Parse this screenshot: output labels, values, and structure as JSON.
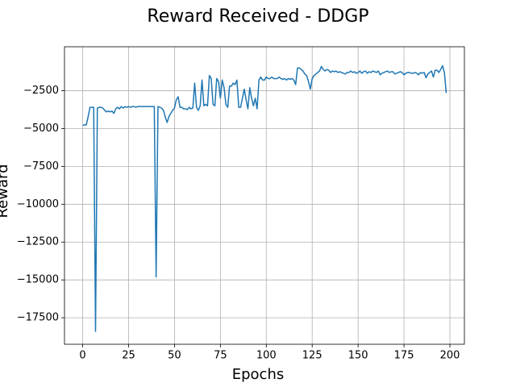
{
  "chart_data": {
    "type": "line",
    "title": "Reward Received - DDGP",
    "x_label": "Epochs",
    "y_label": "Reward",
    "color": "#1f77b4",
    "grid": true,
    "xlim": [
      -9.9,
      207.9
    ],
    "ylim": [
      -19250,
      400
    ],
    "xticks": [
      0,
      25,
      50,
      75,
      100,
      125,
      150,
      175,
      200
    ],
    "yticks": [
      {
        "value": -17500,
        "label": "−17500"
      },
      {
        "value": -15000,
        "label": "−15000"
      },
      {
        "value": -12500,
        "label": "−12500"
      },
      {
        "value": -10000,
        "label": "−10000"
      },
      {
        "value": -7500,
        "label": "−7500"
      },
      {
        "value": -5000,
        "label": "−5000"
      },
      {
        "value": -2500,
        "label": "−2500"
      }
    ],
    "x": [
      0,
      1,
      2,
      3,
      4,
      5,
      6,
      7,
      8,
      9,
      10,
      11,
      12,
      13,
      14,
      15,
      16,
      17,
      18,
      19,
      20,
      21,
      22,
      23,
      24,
      25,
      26,
      27,
      28,
      29,
      30,
      31,
      32,
      33,
      34,
      35,
      36,
      37,
      38,
      39,
      40,
      41,
      42,
      43,
      44,
      45,
      46,
      47,
      48,
      49,
      50,
      51,
      52,
      53,
      54,
      55,
      56,
      57,
      58,
      59,
      60,
      61,
      62,
      63,
      64,
      65,
      66,
      67,
      68,
      69,
      70,
      71,
      72,
      73,
      74,
      75,
      76,
      77,
      78,
      79,
      80,
      81,
      82,
      83,
      84,
      85,
      86,
      87,
      88,
      89,
      90,
      91,
      92,
      93,
      94,
      95,
      96,
      97,
      98,
      99,
      100,
      101,
      102,
      103,
      104,
      105,
      106,
      107,
      108,
      109,
      110,
      111,
      112,
      113,
      114,
      115,
      116,
      117,
      118,
      119,
      120,
      121,
      122,
      123,
      124,
      125,
      126,
      127,
      128,
      129,
      130,
      131,
      132,
      133,
      134,
      135,
      136,
      137,
      138,
      139,
      140,
      141,
      142,
      143,
      144,
      145,
      146,
      147,
      148,
      149,
      150,
      151,
      152,
      153,
      154,
      155,
      156,
      157,
      158,
      159,
      160,
      161,
      162,
      163,
      164,
      165,
      166,
      167,
      168,
      169,
      170,
      171,
      172,
      173,
      174,
      175,
      176,
      177,
      178,
      179,
      180,
      181,
      182,
      183,
      184,
      185,
      186,
      187,
      188,
      189,
      190,
      191,
      192,
      193,
      194,
      195,
      196,
      197,
      198
    ],
    "values": [
      -4800,
      -4750,
      -4750,
      -4200,
      -3600,
      -3600,
      -3600,
      -18400,
      -3650,
      -3600,
      -3600,
      -3650,
      -3800,
      -3900,
      -3850,
      -3900,
      -3850,
      -4000,
      -3700,
      -3600,
      -3700,
      -3550,
      -3650,
      -3550,
      -3600,
      -3550,
      -3600,
      -3550,
      -3550,
      -3600,
      -3550,
      -3550,
      -3550,
      -3550,
      -3550,
      -3550,
      -3550,
      -3550,
      -3550,
      -3550,
      -14800,
      -3550,
      -3600,
      -3650,
      -3800,
      -4250,
      -4600,
      -4200,
      -4000,
      -3800,
      -3650,
      -3100,
      -2900,
      -3600,
      -3600,
      -3700,
      -3700,
      -3750,
      -3600,
      -3700,
      -3650,
      -2000,
      -3600,
      -3800,
      -3500,
      -1800,
      -3500,
      -3400,
      -3500,
      -1500,
      -1700,
      -3400,
      -3500,
      -1700,
      -1900,
      -3000,
      -1800,
      -2300,
      -3400,
      -3600,
      -2200,
      -2200,
      -2000,
      -2100,
      -1800,
      -3600,
      -3600,
      -3000,
      -2400,
      -3100,
      -3700,
      -2300,
      -3000,
      -3500,
      -3000,
      -3700,
      -1800,
      -1600,
      -1800,
      -1800,
      -1600,
      -1700,
      -1700,
      -1600,
      -1700,
      -1700,
      -1700,
      -1600,
      -1700,
      -1750,
      -1700,
      -1800,
      -1700,
      -1750,
      -1700,
      -1800,
      -2100,
      -1000,
      -1000,
      -1100,
      -1200,
      -1400,
      -1500,
      -1900,
      -2400,
      -1700,
      -1500,
      -1400,
      -1300,
      -1200,
      -900,
      -1100,
      -1200,
      -1100,
      -1150,
      -1300,
      -1200,
      -1250,
      -1200,
      -1300,
      -1250,
      -1300,
      -1350,
      -1400,
      -1300,
      -1300,
      -1200,
      -1300,
      -1250,
      -1350,
      -1300,
      -1200,
      -1350,
      -1250,
      -1200,
      -1350,
      -1250,
      -1300,
      -1200,
      -1250,
      -1300,
      -1200,
      -1450,
      -1350,
      -1300,
      -1250,
      -1200,
      -1300,
      -1250,
      -1250,
      -1400,
      -1350,
      -1300,
      -1250,
      -1300,
      -1450,
      -1350,
      -1300,
      -1300,
      -1350,
      -1350,
      -1300,
      -1350,
      -1450,
      -1300,
      -1350,
      -1300,
      -1650,
      -1400,
      -1300,
      -1200,
      -1600,
      -1150,
      -1150,
      -1300,
      -1100,
      -850,
      -1300,
      -2650
    ]
  }
}
